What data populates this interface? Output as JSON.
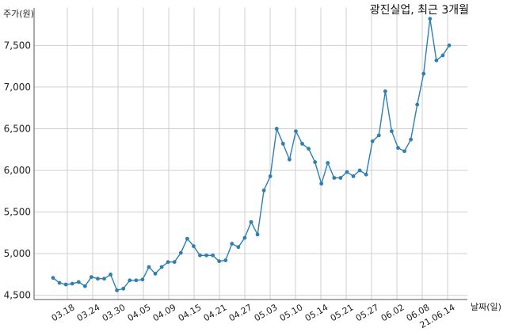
{
  "chart_data": {
    "type": "line",
    "title": "광진실업, 최근 3개월",
    "ylabel": "주가(원)",
    "xlabel": "날짜(일)",
    "ylim": [
      4450,
      7950
    ],
    "y_ticks": [
      4500,
      5000,
      5500,
      6000,
      6500,
      7000,
      7500
    ],
    "y_tick_labels": [
      "4,500",
      "5,000",
      "5,500",
      "6,000",
      "6,500",
      "7,000",
      "7,500"
    ],
    "x_tick_labels": [
      "03.18",
      "03.24",
      "03.30",
      "04.05",
      "04.09",
      "04.15",
      "04.21",
      "04.27",
      "05.03",
      "05.10",
      "05.14",
      "05.21",
      "05.27",
      "06.02",
      "06.08",
      "21.06.14"
    ],
    "grid": true,
    "color": "#2f7fb0",
    "series": [
      {
        "values": [
          4710,
          4650,
          4630,
          4640,
          4660,
          4610,
          4720,
          4700,
          4700,
          4750,
          4560,
          4580,
          4680,
          4680,
          4690,
          4840,
          4760,
          4840,
          4900,
          4900,
          5010,
          5180,
          5090,
          4980,
          4980,
          4980,
          4910,
          4920,
          5120,
          5080,
          5190,
          5380,
          5230,
          5760,
          5930,
          6500,
          6320,
          6130,
          6470,
          6320,
          6260,
          6100,
          5840,
          6090,
          5910,
          5910,
          5980,
          5930,
          6000,
          5950,
          6350,
          6420,
          6950,
          6470,
          6270,
          6230,
          6370,
          6790,
          7160,
          7820,
          7320,
          7380,
          7500
        ]
      }
    ]
  }
}
